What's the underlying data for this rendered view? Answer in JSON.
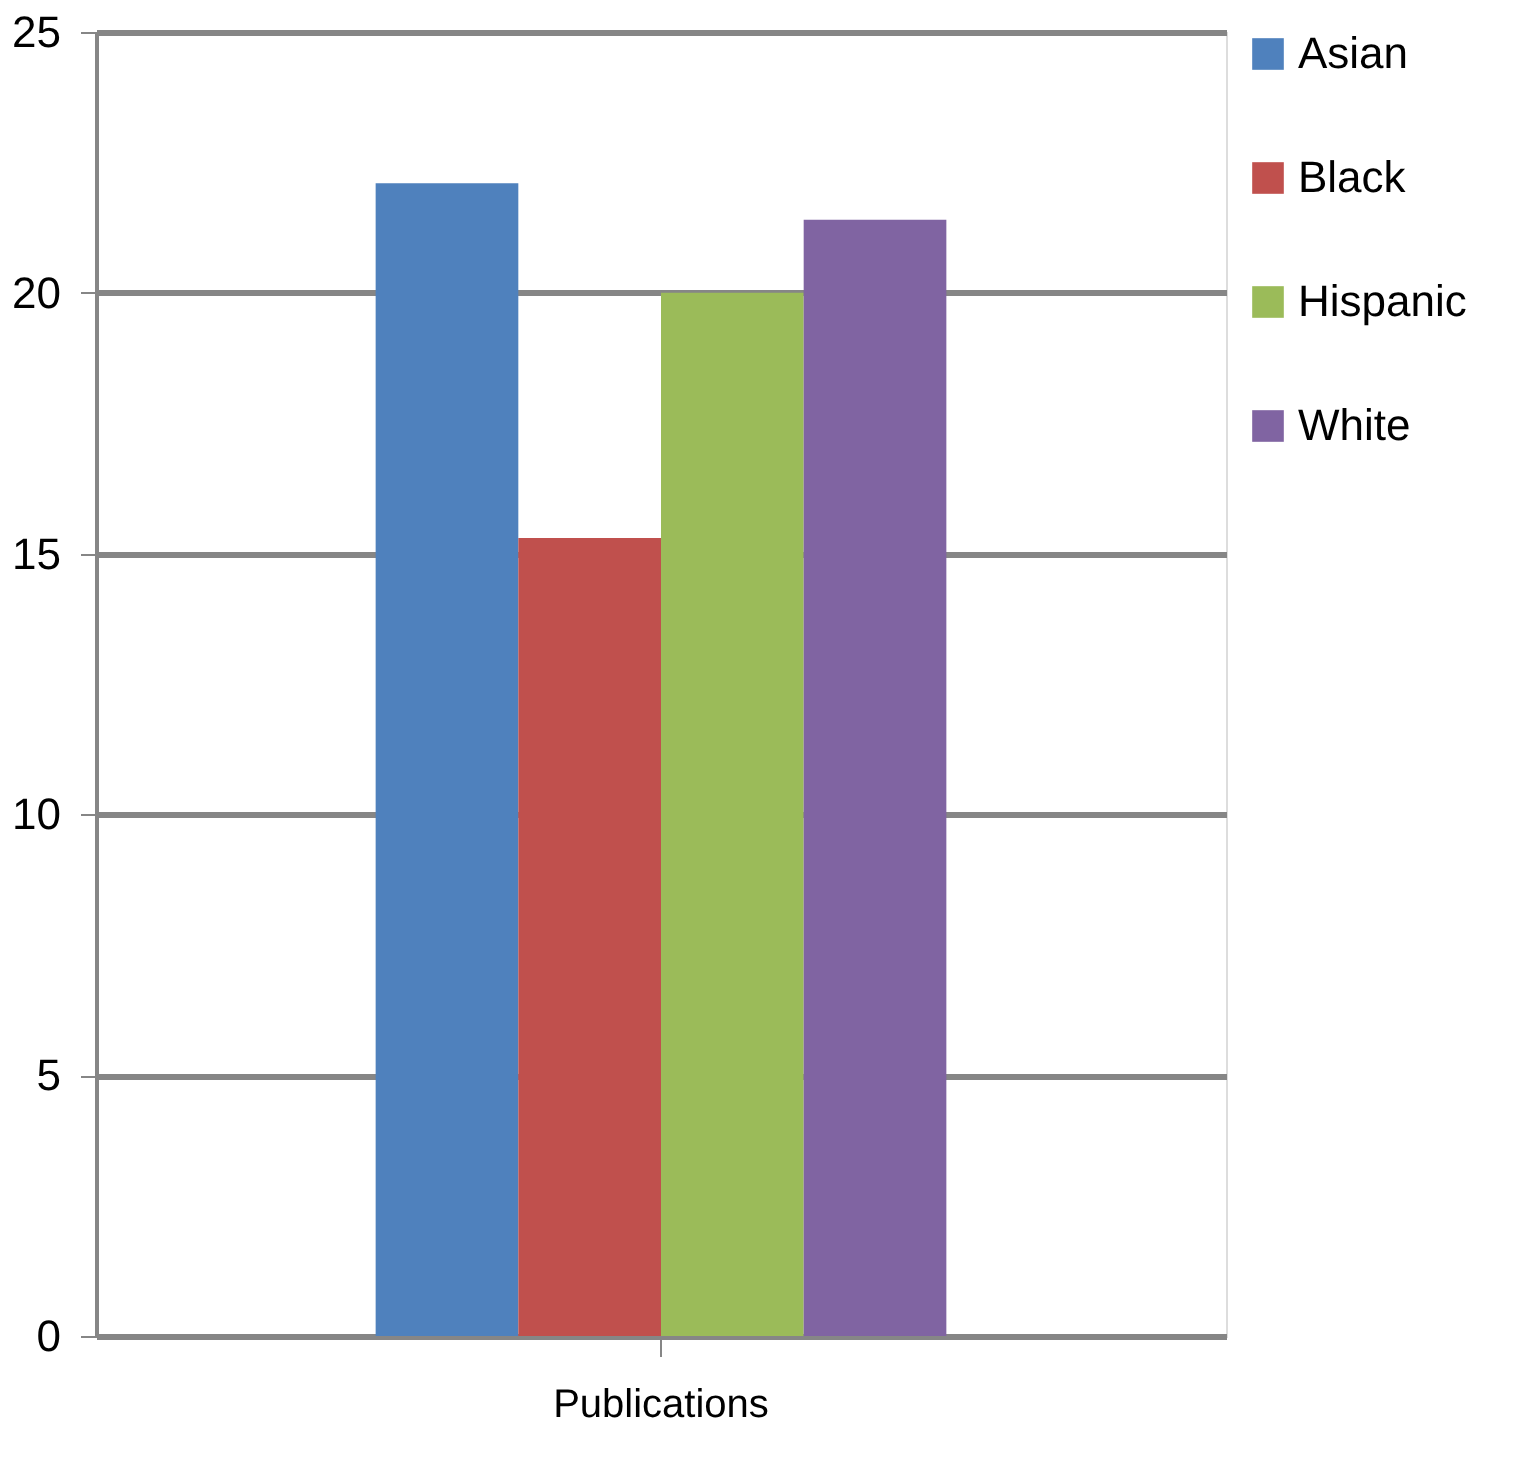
{
  "chart_data": {
    "type": "bar",
    "categories": [
      "Publications"
    ],
    "series": [
      {
        "name": "Asian",
        "color": "#4f81bd",
        "values": [
          22.1
        ]
      },
      {
        "name": "Black",
        "color": "#c0504d",
        "values": [
          15.3
        ]
      },
      {
        "name": "Hispanic",
        "color": "#9bbb59",
        "values": [
          20.0
        ]
      },
      {
        "name": "White",
        "color": "#8064a2",
        "values": [
          21.4
        ]
      }
    ],
    "ylim": [
      0,
      25
    ],
    "yticks": [
      0,
      5,
      10,
      15,
      20,
      25
    ],
    "grid": "y",
    "legend": "right"
  }
}
